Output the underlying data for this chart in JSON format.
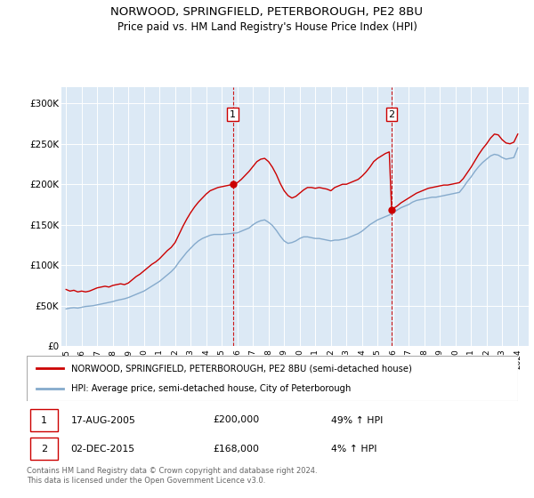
{
  "title1": "NORWOOD, SPRINGFIELD, PETERBOROUGH, PE2 8BU",
  "title2": "Price paid vs. HM Land Registry's House Price Index (HPI)",
  "plot_bg_color": "#dce9f5",
  "red_line_color": "#cc0000",
  "blue_line_color": "#85aacc",
  "ylim": [
    0,
    320000
  ],
  "yticks": [
    0,
    50000,
    100000,
    150000,
    200000,
    250000,
    300000
  ],
  "ytick_labels": [
    "£0",
    "£50K",
    "£100K",
    "£150K",
    "£200K",
    "£250K",
    "£300K"
  ],
  "sale1_year": 2005.7,
  "sale1_price": 200000,
  "sale2_year": 2015.9,
  "sale2_price": 168000,
  "legend1": "NORWOOD, SPRINGFIELD, PETERBOROUGH, PE2 8BU (semi-detached house)",
  "legend2": "HPI: Average price, semi-detached house, City of Peterborough",
  "note1_label": "1",
  "note1_date": "17-AUG-2005",
  "note1_price": "£200,000",
  "note1_hpi": "49% ↑ HPI",
  "note2_label": "2",
  "note2_date": "02-DEC-2015",
  "note2_price": "£168,000",
  "note2_hpi": "4% ↑ HPI",
  "footer": "Contains HM Land Registry data © Crown copyright and database right 2024.\nThis data is licensed under the Open Government Licence v3.0.",
  "hpi_data": [
    [
      1995.0,
      46000
    ],
    [
      1995.25,
      47000
    ],
    [
      1995.5,
      47500
    ],
    [
      1995.75,
      47000
    ],
    [
      1996.0,
      48000
    ],
    [
      1996.25,
      49000
    ],
    [
      1996.5,
      49500
    ],
    [
      1996.75,
      50000
    ],
    [
      1997.0,
      51000
    ],
    [
      1997.25,
      52000
    ],
    [
      1997.5,
      53000
    ],
    [
      1997.75,
      54000
    ],
    [
      1998.0,
      55000
    ],
    [
      1998.25,
      56500
    ],
    [
      1998.5,
      57500
    ],
    [
      1998.75,
      58500
    ],
    [
      1999.0,
      60000
    ],
    [
      1999.25,
      62000
    ],
    [
      1999.5,
      64000
    ],
    [
      1999.75,
      66000
    ],
    [
      2000.0,
      68000
    ],
    [
      2000.25,
      71000
    ],
    [
      2000.5,
      74000
    ],
    [
      2000.75,
      77000
    ],
    [
      2001.0,
      80000
    ],
    [
      2001.25,
      84000
    ],
    [
      2001.5,
      88000
    ],
    [
      2001.75,
      92000
    ],
    [
      2002.0,
      97000
    ],
    [
      2002.25,
      104000
    ],
    [
      2002.5,
      110000
    ],
    [
      2002.75,
      116000
    ],
    [
      2003.0,
      121000
    ],
    [
      2003.25,
      126000
    ],
    [
      2003.5,
      130000
    ],
    [
      2003.75,
      133000
    ],
    [
      2004.0,
      135000
    ],
    [
      2004.25,
      137000
    ],
    [
      2004.5,
      138000
    ],
    [
      2004.75,
      138000
    ],
    [
      2005.0,
      138000
    ],
    [
      2005.25,
      138500
    ],
    [
      2005.5,
      139000
    ],
    [
      2005.75,
      139500
    ],
    [
      2006.0,
      140000
    ],
    [
      2006.25,
      142000
    ],
    [
      2006.5,
      144000
    ],
    [
      2006.75,
      146000
    ],
    [
      2007.0,
      150000
    ],
    [
      2007.25,
      153000
    ],
    [
      2007.5,
      155000
    ],
    [
      2007.75,
      156000
    ],
    [
      2008.0,
      153000
    ],
    [
      2008.25,
      149000
    ],
    [
      2008.5,
      143000
    ],
    [
      2008.75,
      136000
    ],
    [
      2009.0,
      130000
    ],
    [
      2009.25,
      127000
    ],
    [
      2009.5,
      128000
    ],
    [
      2009.75,
      130000
    ],
    [
      2010.0,
      133000
    ],
    [
      2010.25,
      135000
    ],
    [
      2010.5,
      135000
    ],
    [
      2010.75,
      134000
    ],
    [
      2011.0,
      133000
    ],
    [
      2011.25,
      133000
    ],
    [
      2011.5,
      132000
    ],
    [
      2011.75,
      131000
    ],
    [
      2012.0,
      130000
    ],
    [
      2012.25,
      131000
    ],
    [
      2012.5,
      131000
    ],
    [
      2012.75,
      132000
    ],
    [
      2013.0,
      133000
    ],
    [
      2013.25,
      135000
    ],
    [
      2013.5,
      137000
    ],
    [
      2013.75,
      139000
    ],
    [
      2014.0,
      142000
    ],
    [
      2014.25,
      146000
    ],
    [
      2014.5,
      150000
    ],
    [
      2014.75,
      153000
    ],
    [
      2015.0,
      156000
    ],
    [
      2015.25,
      158000
    ],
    [
      2015.5,
      160000
    ],
    [
      2015.75,
      162000
    ],
    [
      2016.0,
      165000
    ],
    [
      2016.25,
      168000
    ],
    [
      2016.5,
      171000
    ],
    [
      2016.75,
      173000
    ],
    [
      2017.0,
      175000
    ],
    [
      2017.25,
      178000
    ],
    [
      2017.5,
      180000
    ],
    [
      2017.75,
      181000
    ],
    [
      2018.0,
      182000
    ],
    [
      2018.25,
      183000
    ],
    [
      2018.5,
      184000
    ],
    [
      2018.75,
      184000
    ],
    [
      2019.0,
      185000
    ],
    [
      2019.25,
      186000
    ],
    [
      2019.5,
      187000
    ],
    [
      2019.75,
      188000
    ],
    [
      2020.0,
      189000
    ],
    [
      2020.25,
      190000
    ],
    [
      2020.5,
      196000
    ],
    [
      2020.75,
      203000
    ],
    [
      2021.0,
      209000
    ],
    [
      2021.25,
      216000
    ],
    [
      2021.5,
      222000
    ],
    [
      2021.75,
      227000
    ],
    [
      2022.0,
      231000
    ],
    [
      2022.25,
      235000
    ],
    [
      2022.5,
      237000
    ],
    [
      2022.75,
      236000
    ],
    [
      2023.0,
      233000
    ],
    [
      2023.25,
      231000
    ],
    [
      2023.5,
      232000
    ],
    [
      2023.75,
      233000
    ],
    [
      2024.0,
      245000
    ]
  ],
  "price_data": [
    [
      1995.0,
      70000
    ],
    [
      1995.25,
      68000
    ],
    [
      1995.5,
      69000
    ],
    [
      1995.75,
      67000
    ],
    [
      1996.0,
      68000
    ],
    [
      1996.25,
      67000
    ],
    [
      1996.5,
      68000
    ],
    [
      1996.75,
      70000
    ],
    [
      1997.0,
      72000
    ],
    [
      1997.25,
      73000
    ],
    [
      1997.5,
      74000
    ],
    [
      1997.75,
      73000
    ],
    [
      1998.0,
      75000
    ],
    [
      1998.25,
      76000
    ],
    [
      1998.5,
      77000
    ],
    [
      1998.75,
      76000
    ],
    [
      1999.0,
      78000
    ],
    [
      1999.25,
      82000
    ],
    [
      1999.5,
      86000
    ],
    [
      1999.75,
      89000
    ],
    [
      2000.0,
      93000
    ],
    [
      2000.25,
      97000
    ],
    [
      2000.5,
      101000
    ],
    [
      2000.75,
      104000
    ],
    [
      2001.0,
      108000
    ],
    [
      2001.25,
      113000
    ],
    [
      2001.5,
      118000
    ],
    [
      2001.75,
      122000
    ],
    [
      2002.0,
      128000
    ],
    [
      2002.25,
      138000
    ],
    [
      2002.5,
      148000
    ],
    [
      2002.75,
      157000
    ],
    [
      2003.0,
      165000
    ],
    [
      2003.25,
      172000
    ],
    [
      2003.5,
      178000
    ],
    [
      2003.75,
      183000
    ],
    [
      2004.0,
      188000
    ],
    [
      2004.25,
      192000
    ],
    [
      2004.5,
      194000
    ],
    [
      2004.75,
      196000
    ],
    [
      2005.0,
      197000
    ],
    [
      2005.25,
      198000
    ],
    [
      2005.5,
      199000
    ],
    [
      2005.75,
      200000
    ],
    [
      2006.0,
      202000
    ],
    [
      2006.25,
      206000
    ],
    [
      2006.5,
      211000
    ],
    [
      2006.75,
      216000
    ],
    [
      2007.0,
      222000
    ],
    [
      2007.25,
      228000
    ],
    [
      2007.5,
      231000
    ],
    [
      2007.75,
      232000
    ],
    [
      2008.0,
      228000
    ],
    [
      2008.25,
      221000
    ],
    [
      2008.5,
      212000
    ],
    [
      2008.75,
      201000
    ],
    [
      2009.0,
      192000
    ],
    [
      2009.25,
      186000
    ],
    [
      2009.5,
      183000
    ],
    [
      2009.75,
      185000
    ],
    [
      2010.0,
      189000
    ],
    [
      2010.25,
      193000
    ],
    [
      2010.5,
      196000
    ],
    [
      2010.75,
      196000
    ],
    [
      2011.0,
      195000
    ],
    [
      2011.25,
      196000
    ],
    [
      2011.5,
      195000
    ],
    [
      2011.75,
      194000
    ],
    [
      2012.0,
      192000
    ],
    [
      2012.25,
      196000
    ],
    [
      2012.5,
      198000
    ],
    [
      2012.75,
      200000
    ],
    [
      2013.0,
      200000
    ],
    [
      2013.25,
      202000
    ],
    [
      2013.5,
      204000
    ],
    [
      2013.75,
      206000
    ],
    [
      2014.0,
      210000
    ],
    [
      2014.25,
      215000
    ],
    [
      2014.5,
      221000
    ],
    [
      2014.75,
      228000
    ],
    [
      2015.0,
      232000
    ],
    [
      2015.25,
      235000
    ],
    [
      2015.5,
      238000
    ],
    [
      2015.75,
      240000
    ],
    [
      2015.9,
      168000
    ],
    [
      2016.0,
      170000
    ],
    [
      2016.25,
      173000
    ],
    [
      2016.5,
      177000
    ],
    [
      2016.75,
      180000
    ],
    [
      2017.0,
      183000
    ],
    [
      2017.25,
      186000
    ],
    [
      2017.5,
      189000
    ],
    [
      2017.75,
      191000
    ],
    [
      2018.0,
      193000
    ],
    [
      2018.25,
      195000
    ],
    [
      2018.5,
      196000
    ],
    [
      2018.75,
      197000
    ],
    [
      2019.0,
      198000
    ],
    [
      2019.25,
      199000
    ],
    [
      2019.5,
      199000
    ],
    [
      2019.75,
      200000
    ],
    [
      2020.0,
      201000
    ],
    [
      2020.25,
      202000
    ],
    [
      2020.5,
      207000
    ],
    [
      2020.75,
      214000
    ],
    [
      2021.0,
      221000
    ],
    [
      2021.25,
      229000
    ],
    [
      2021.5,
      237000
    ],
    [
      2021.75,
      244000
    ],
    [
      2022.0,
      250000
    ],
    [
      2022.25,
      257000
    ],
    [
      2022.5,
      262000
    ],
    [
      2022.75,
      261000
    ],
    [
      2023.0,
      255000
    ],
    [
      2023.25,
      251000
    ],
    [
      2023.5,
      250000
    ],
    [
      2023.75,
      252000
    ],
    [
      2024.0,
      262000
    ]
  ]
}
